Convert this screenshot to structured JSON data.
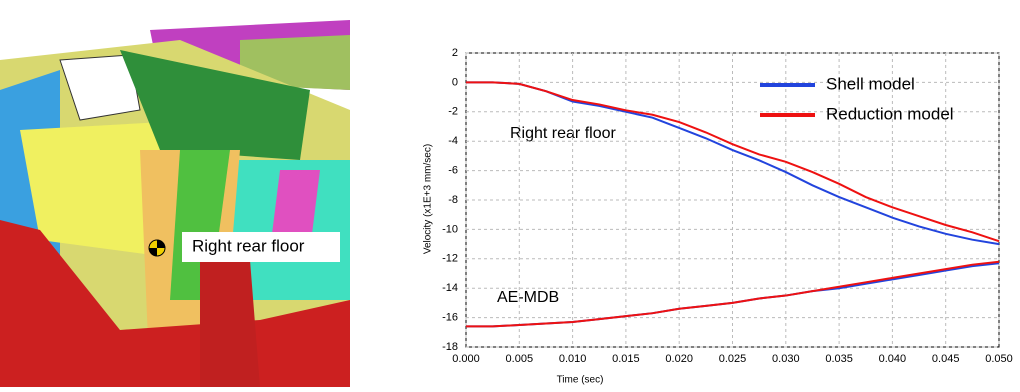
{
  "figure": {
    "image_label": "Right rear floor"
  },
  "chart_data": {
    "type": "line",
    "xlabel": "Time (sec)",
    "ylabel": "Velocity (x1E+3 mm/sec)",
    "annotations": [
      "Right rear floor",
      "AE-MDB"
    ],
    "x": [
      0,
      0.0025,
      0.005,
      0.0075,
      0.01,
      0.0125,
      0.015,
      0.0175,
      0.02,
      0.0225,
      0.025,
      0.0275,
      0.03,
      0.0325,
      0.035,
      0.0375,
      0.04,
      0.0425,
      0.045,
      0.0475,
      0.05
    ],
    "series": [
      {
        "name": "Shell model",
        "color": "#2244dd",
        "values": [
          0,
          0,
          -0.1,
          -0.6,
          -1.3,
          -1.6,
          -2.0,
          -2.4,
          -3.1,
          -3.8,
          -4.6,
          -5.3,
          -6.1,
          -7.0,
          -7.8,
          -8.5,
          -9.2,
          -9.8,
          -10.3,
          -10.7,
          -11.0
        ],
        "mdb_values": [
          -16.6,
          -16.6,
          -16.5,
          -16.4,
          -16.3,
          -16.1,
          -15.9,
          -15.7,
          -15.4,
          -15.2,
          -15.0,
          -14.7,
          -14.5,
          -14.2,
          -14.0,
          -13.7,
          -13.4,
          -13.1,
          -12.8,
          -12.5,
          -12.3
        ]
      },
      {
        "name": "Reduction model",
        "color": "#ee1111",
        "values": [
          0,
          0,
          -0.1,
          -0.6,
          -1.2,
          -1.5,
          -1.9,
          -2.2,
          -2.7,
          -3.4,
          -4.2,
          -4.9,
          -5.4,
          -6.1,
          -6.9,
          -7.8,
          -8.5,
          -9.1,
          -9.7,
          -10.2,
          -10.8
        ],
        "mdb_values": [
          -16.6,
          -16.6,
          -16.5,
          -16.4,
          -16.3,
          -16.1,
          -15.9,
          -15.7,
          -15.4,
          -15.2,
          -15.0,
          -14.7,
          -14.5,
          -14.2,
          -13.9,
          -13.6,
          -13.3,
          -13.0,
          -12.7,
          -12.4,
          -12.2
        ]
      }
    ],
    "xlim": [
      0,
      0.05
    ],
    "xticks": [
      {
        "value": 0,
        "label": "0.000"
      },
      {
        "value": 0.005,
        "label": "0.005"
      },
      {
        "value": 0.01,
        "label": "0.010"
      },
      {
        "value": 0.015,
        "label": "0.015"
      },
      {
        "value": 0.02,
        "label": "0.020"
      },
      {
        "value": 0.025,
        "label": "0.025"
      },
      {
        "value": 0.03,
        "label": "0.030"
      },
      {
        "value": 0.035,
        "label": "0.035"
      },
      {
        "value": 0.04,
        "label": "0.040"
      },
      {
        "value": 0.045,
        "label": "0.045"
      },
      {
        "value": 0.05,
        "label": "0.050"
      }
    ],
    "ylim": [
      -18,
      2
    ],
    "yticks": [
      -18,
      -16,
      -14,
      -12,
      -10,
      -8,
      -6,
      -4,
      -2,
      0,
      2
    ],
    "grid": true,
    "legend": "upper right"
  }
}
